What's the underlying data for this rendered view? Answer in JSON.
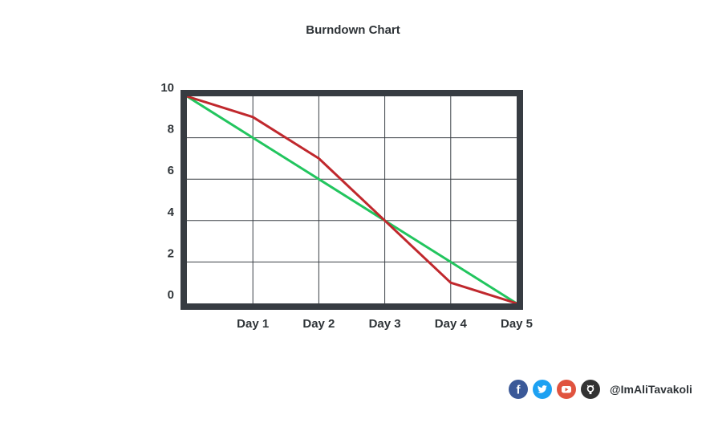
{
  "chart_data": {
    "type": "line",
    "title": "Burndown Chart",
    "xlabel": "",
    "ylabel": "",
    "categories": [
      "",
      "Day 1",
      "Day 2",
      "Day 3",
      "Day 4",
      "Day 5"
    ],
    "x_tick_labels": [
      "Day 1",
      "Day 2",
      "Day 3",
      "Day 4",
      "Day 5"
    ],
    "y_tick_labels": [
      "0",
      "2",
      "4",
      "6",
      "8",
      "10"
    ],
    "ylim": [
      0,
      10
    ],
    "grid": true,
    "legend": "none",
    "series": [
      {
        "values": [
          10,
          8,
          6,
          4,
          2,
          0
        ],
        "color": "#22c55e"
      },
      {
        "values": [
          10,
          9,
          7,
          4,
          1,
          0
        ],
        "color": "#c0282d"
      }
    ],
    "frame_color": "#373c42",
    "grid_color": "#3b4046"
  },
  "footer": {
    "icons": [
      {
        "name": "facebook-icon",
        "color": "#3b5998"
      },
      {
        "name": "twitter-icon",
        "color": "#1da1f2"
      },
      {
        "name": "youtube-icon",
        "color": "#e0533f"
      },
      {
        "name": "github-icon",
        "color": "#333333"
      }
    ],
    "handle": "@ImAliTavakoli"
  }
}
